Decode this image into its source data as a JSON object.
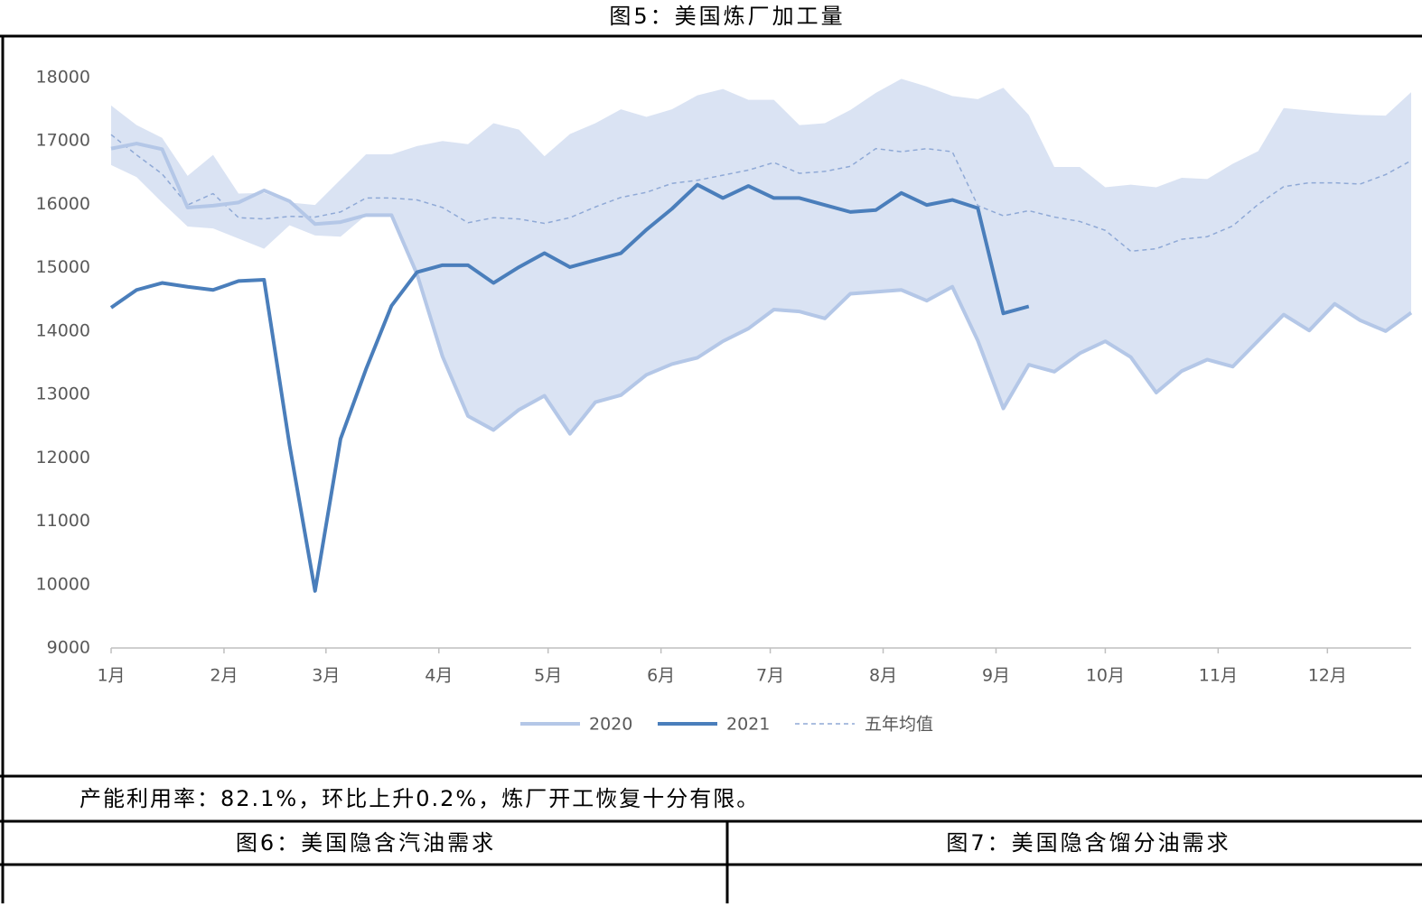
{
  "chart_data": {
    "type": "line",
    "title": "图5：美国炼厂加工量",
    "x": [
      0,
      7,
      14,
      21,
      28,
      35,
      42,
      49,
      56,
      63,
      70,
      77,
      84,
      91,
      98,
      105,
      112,
      119,
      126,
      133,
      140,
      147,
      154,
      161,
      168,
      175,
      182,
      189,
      196,
      203,
      210,
      217,
      224,
      231,
      238,
      245,
      252,
      259,
      266,
      273,
      280,
      287,
      294,
      301,
      308,
      315,
      322,
      329,
      336,
      343,
      350,
      357
    ],
    "xlim": [
      0,
      357
    ],
    "xticks": [
      {
        "value": 0,
        "label": "1月"
      },
      {
        "value": 31,
        "label": "2月"
      },
      {
        "value": 59,
        "label": "3月"
      },
      {
        "value": 90,
        "label": "4月"
      },
      {
        "value": 120,
        "label": "5月"
      },
      {
        "value": 151,
        "label": "6月"
      },
      {
        "value": 181,
        "label": "7月"
      },
      {
        "value": 212,
        "label": "8月"
      },
      {
        "value": 243,
        "label": "9月"
      },
      {
        "value": 273,
        "label": "10月"
      },
      {
        "value": 304,
        "label": "11月"
      },
      {
        "value": 334,
        "label": "12月"
      }
    ],
    "ylim": [
      9000,
      18000
    ],
    "yticks": [
      9000,
      10000,
      11000,
      12000,
      13000,
      14000,
      15000,
      16000,
      17000,
      18000
    ],
    "band": {
      "color": "#dae3f3",
      "upper": [
        17560,
        17250,
        17050,
        16450,
        16780,
        16170,
        16180,
        16030,
        15990,
        16390,
        16790,
        16790,
        16920,
        17000,
        16950,
        17280,
        17180,
        16760,
        17110,
        17280,
        17500,
        17380,
        17500,
        17720,
        17820,
        17650,
        17650,
        17250,
        17280,
        17490,
        17760,
        17980,
        17860,
        17710,
        17660,
        17840,
        17410,
        16590,
        16590,
        16270,
        16310,
        16270,
        16420,
        16400,
        16640,
        16840,
        17520,
        17480,
        17440,
        17410,
        17400,
        17770
      ],
      "lower": [
        16620,
        16430,
        16030,
        15650,
        15620,
        15460,
        15300,
        15670,
        15510,
        15490,
        15830,
        15830,
        14900,
        13600,
        12660,
        12440,
        12760,
        12980,
        12380,
        12880,
        12990,
        13310,
        13480,
        13580,
        13840,
        14040,
        14340,
        14310,
        14200,
        14590,
        14620,
        14650,
        14480,
        14700,
        13850,
        12780,
        13470,
        13360,
        13650,
        13840,
        13590,
        13030,
        13370,
        13550,
        13440,
        13850,
        14260,
        14010,
        14430,
        14170,
        14000,
        14290
      ]
    },
    "series": [
      {
        "name": "2020",
        "color": "#b4c7e7",
        "width": 4,
        "dashed": false,
        "values": [
          16880,
          16960,
          16870,
          15950,
          15980,
          16030,
          16220,
          16050,
          15690,
          15720,
          15830,
          15830,
          14900,
          13600,
          12660,
          12440,
          12760,
          12980,
          12380,
          12880,
          12990,
          13310,
          13480,
          13580,
          13840,
          14040,
          14340,
          14310,
          14200,
          14590,
          14620,
          14650,
          14480,
          14700,
          13850,
          12780,
          13470,
          13360,
          13650,
          13840,
          13590,
          13030,
          13370,
          13550,
          13440,
          13850,
          14260,
          14010,
          14430,
          14170,
          14000,
          14290
        ]
      },
      {
        "name": "2021",
        "color": "#4a7ebb",
        "width": 4,
        "dashed": false,
        "values": [
          14370,
          14650,
          14760,
          14700,
          14650,
          14790,
          14810,
          12200,
          9900,
          12300,
          13400,
          14400,
          14930,
          15040,
          15040,
          14760,
          15010,
          15230,
          15010,
          15120,
          15230,
          15600,
          15930,
          16310,
          16100,
          16290,
          16100,
          16100,
          15990,
          15880,
          15910,
          16180,
          15990,
          16070,
          15940,
          14280,
          14390,
          null,
          null,
          null,
          null,
          null,
          null,
          null,
          null,
          null,
          null,
          null,
          null,
          null,
          null,
          null
        ]
      },
      {
        "name": "五年均值",
        "color": "#8fa9d6",
        "width": 1.5,
        "dashed": true,
        "values": [
          17100,
          16780,
          16480,
          15990,
          16170,
          15790,
          15770,
          15810,
          15800,
          15880,
          16100,
          16100,
          16070,
          15950,
          15710,
          15790,
          15770,
          15700,
          15790,
          15960,
          16110,
          16190,
          16330,
          16380,
          16460,
          16540,
          16660,
          16490,
          16520,
          16600,
          16880,
          16830,
          16880,
          16830,
          15980,
          15820,
          15900,
          15800,
          15730,
          15590,
          15260,
          15300,
          15450,
          15490,
          15660,
          16000,
          16280,
          16340,
          16340,
          16320,
          16470,
          16690
        ]
      }
    ]
  },
  "note": "产能利用率：82.1%，环比上升0.2%，炼厂开工恢复十分有限。",
  "figures": [
    {
      "title": "图6：美国隐含汽油需求"
    },
    {
      "title": "图7：美国隐含馏分油需求"
    }
  ]
}
